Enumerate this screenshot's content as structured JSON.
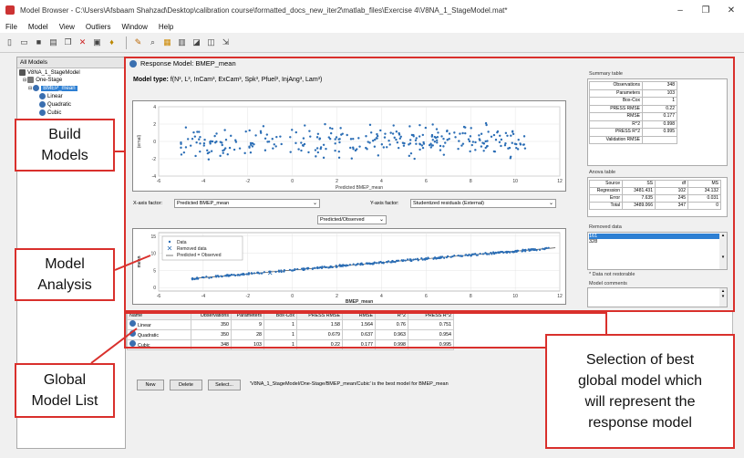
{
  "window": {
    "title": "Model Browser - C:\\Users\\Afsbaam Shahzad\\Desktop\\calibration course\\formatted_docs_new_iter2\\matlab_files\\Exercise 4\\V8NA_1_StageModel.mat*",
    "minimize": "–",
    "maximize": "❐",
    "close": "✕"
  },
  "menu": [
    "File",
    "Model",
    "View",
    "Outliers",
    "Window",
    "Help"
  ],
  "tree": {
    "header": "All Models",
    "root": "V8NA_1_StageModel",
    "stage": "One-Stage",
    "response": "BMEP_mean",
    "children": [
      "Linear",
      "Quadratic",
      "Cubic"
    ]
  },
  "response_model": {
    "title": "Response Model: BMEP_mean",
    "model_type_label": "Model type:",
    "model_type_value": "f(N³, L³, InCam³, ExCam³, Spk³, Pfuel³, InjAng³, Lam³)"
  },
  "residual_plot": {
    "y_label": "(ernal)",
    "x_label": "Predicted BMEP_mean",
    "x_ticks": [
      "-6",
      "-4",
      "-2",
      "0",
      "2",
      "4",
      "6",
      "8",
      "10",
      "12"
    ],
    "y_ticks": [
      "4",
      "2",
      "0",
      "-2",
      "-4"
    ],
    "x_axis_factor_label": "X-axis factor:",
    "x_axis_factor_value": "Predicted BMEP_mean",
    "y_axis_factor_label": "Y-axis factor:",
    "y_axis_factor_value": "Studentized residuals (External)"
  },
  "pred_obs_plot": {
    "dropdown": "Predicted/Observed",
    "y_label": "mean",
    "x_label": "BMEP_mean",
    "x_ticks": [
      "-6",
      "-4",
      "-2",
      "0",
      "2",
      "4",
      "6",
      "8",
      "10",
      "12"
    ],
    "y_ticks": [
      "15",
      "10",
      "5",
      "0"
    ],
    "legend": [
      "Data",
      "Removed data",
      "Predicted = Observed"
    ]
  },
  "summary_table": {
    "title": "Summary table",
    "rows": [
      [
        "Observations",
        "348"
      ],
      [
        "Parameters",
        "103"
      ],
      [
        "Box-Cox",
        "1"
      ],
      [
        "PRESS RMSE",
        "0.22"
      ],
      [
        "RMSE",
        "0.177"
      ],
      [
        "R^2",
        "0.998"
      ],
      [
        "PRESS R^2",
        "0.995"
      ],
      [
        "Validation RMSE",
        ""
      ]
    ]
  },
  "anova_table": {
    "title": "Anova table",
    "headers": [
      "Source",
      "SS",
      "df",
      "MS"
    ],
    "rows": [
      [
        "Regression",
        "3481.431",
        "102",
        "34.132"
      ],
      [
        "Error",
        "7.635",
        "245",
        "0.031"
      ],
      [
        "Total",
        "3489.066",
        "347",
        "0"
      ]
    ]
  },
  "removed_data": {
    "title": "Removed data",
    "items": [
      "161",
      "328"
    ],
    "note": "* Data not restorable"
  },
  "model_comments": {
    "title": "Model comments"
  },
  "model_list": {
    "headers": [
      "Name",
      "Observations",
      "Parameters",
      "Box-Cox",
      "PRESS RMSE",
      "RMSE",
      "R^2",
      "PRESS R^2"
    ],
    "rows": [
      [
        "Linear",
        "350",
        "9",
        "1",
        "1.58",
        "1.564",
        "0.76",
        "0.751"
      ],
      [
        "Quadratic",
        "350",
        "28",
        "1",
        "0.679",
        "0.637",
        "0.963",
        "0.954"
      ],
      [
        "Cubic",
        "348",
        "103",
        "1",
        "0.22",
        "0.177",
        "0.998",
        "0.995"
      ]
    ]
  },
  "bottom_buttons": {
    "new": "New",
    "delete": "Delete",
    "select": "Select..."
  },
  "status": "'V8NA_1_StageModel/One-Stage/BMEP_mean/Cubic' is the best model for BMEP_mean",
  "callouts": {
    "build": "Build\nModels",
    "analysis": "Model\nAnalysis",
    "global": "Global\nModel List",
    "selection": "Selection of best\nglobal model which\nwill represent the\nresponse model"
  },
  "colors": {
    "accent": "#2d7fd3",
    "callout_border": "#d9302c",
    "point": "#2a6db5"
  }
}
